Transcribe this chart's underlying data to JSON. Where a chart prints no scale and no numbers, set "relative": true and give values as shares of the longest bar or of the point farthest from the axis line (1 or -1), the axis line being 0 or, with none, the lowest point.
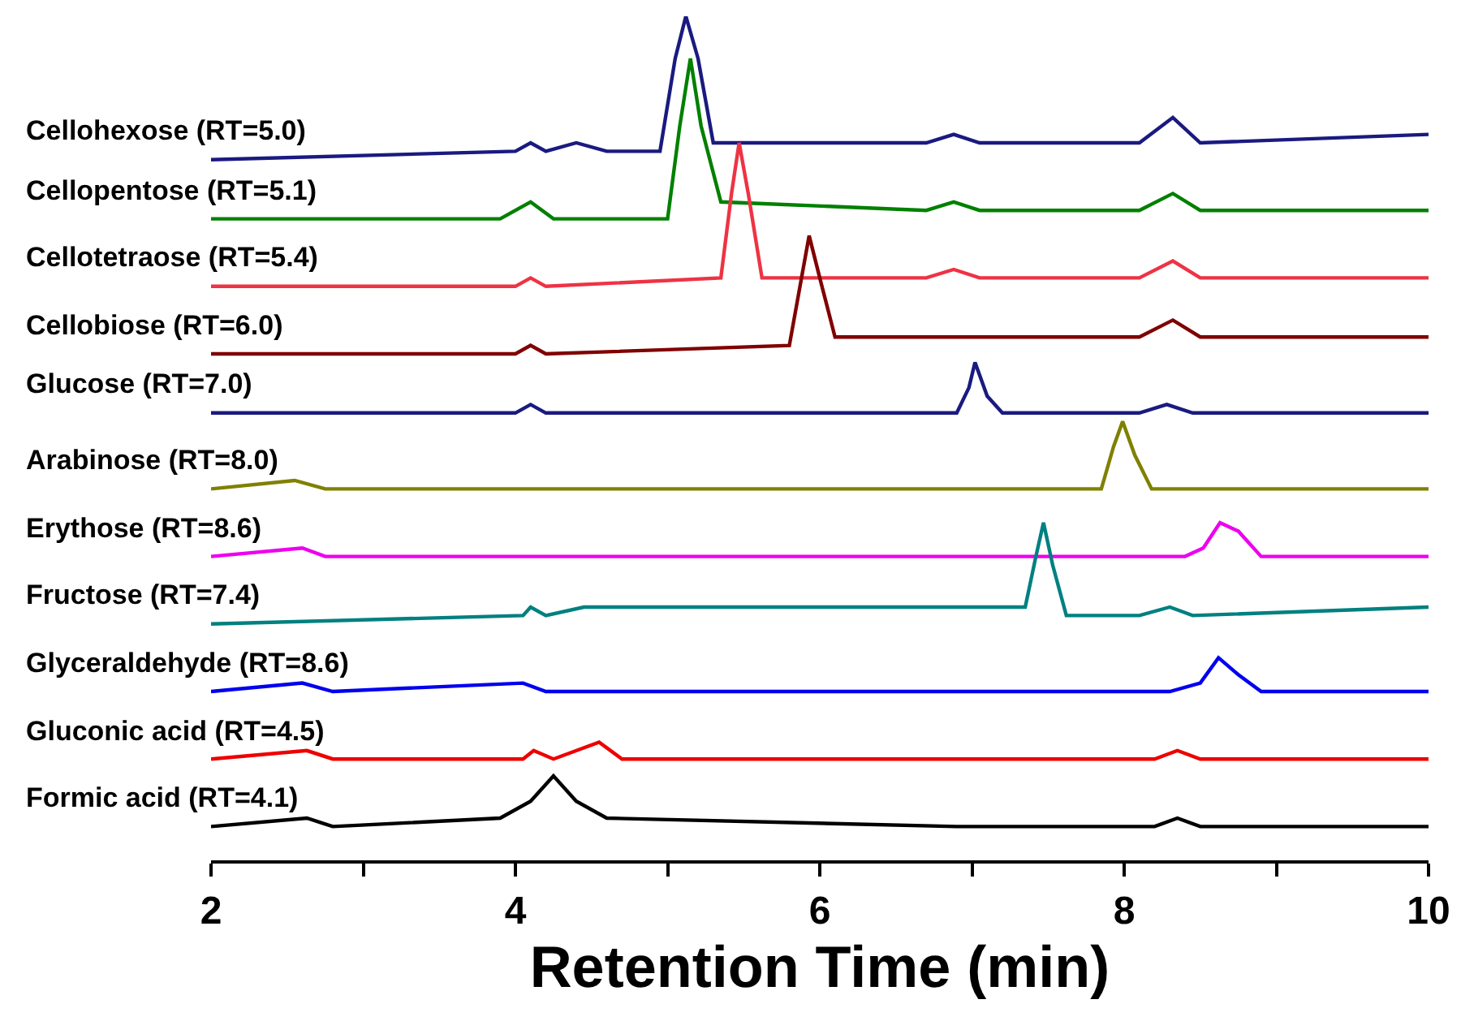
{
  "chart_data": {
    "type": "line",
    "relative": true,
    "xlabel": "Retention Time (min)",
    "xlim": [
      2,
      10
    ],
    "xticks": [
      2,
      {
        "value": 3,
        "label": null
      },
      4,
      {
        "value": 5,
        "label": null
      },
      6,
      {
        "value": 7,
        "label": null
      },
      8,
      {
        "value": 9,
        "label": null
      },
      10
    ],
    "grid": false,
    "legend": false,
    "marker": "none",
    "line_style": "solid",
    "tick_labels": "x",
    "series": [
      {
        "name": "Cellohexose (RT=5.0)",
        "color": "#1a1a80",
        "x": [
          2,
          4,
          4.1,
          4.2,
          4.4,
          4.6,
          4.95,
          5.05,
          5.12,
          5.2,
          5.3,
          5.6,
          6.7,
          6.88,
          7.05,
          8.1,
          8.32,
          8.5,
          10
        ],
        "values": [
          0.83,
          0.84,
          0.85,
          0.84,
          0.85,
          0.84,
          0.84,
          0.95,
          1.0,
          0.95,
          0.85,
          0.85,
          0.85,
          0.86,
          0.85,
          0.85,
          0.88,
          0.85,
          0.86
        ]
      },
      {
        "name": "Cellopentose (RT=5.1)",
        "color": "#008000",
        "x": [
          2,
          3.9,
          4.1,
          4.25,
          5.0,
          5.08,
          5.15,
          5.22,
          5.35,
          6.7,
          6.88,
          7.05,
          8.1,
          8.32,
          8.5,
          10
        ],
        "values": [
          0.76,
          0.76,
          0.78,
          0.76,
          0.76,
          0.87,
          0.95,
          0.87,
          0.78,
          0.77,
          0.78,
          0.77,
          0.77,
          0.79,
          0.77,
          0.77
        ]
      },
      {
        "name": "Cellotetraose (RT=5.4)",
        "color": "#ee3344",
        "x": [
          2,
          4.0,
          4.1,
          4.2,
          5.35,
          5.42,
          5.47,
          5.53,
          5.62,
          5.8,
          6.7,
          6.88,
          7.05,
          8.1,
          8.32,
          8.5,
          10
        ],
        "values": [
          0.68,
          0.68,
          0.69,
          0.68,
          0.69,
          0.79,
          0.85,
          0.79,
          0.69,
          0.69,
          0.69,
          0.7,
          0.69,
          0.69,
          0.71,
          0.69,
          0.69
        ]
      },
      {
        "name": "Cellobiose (RT=6.0)",
        "color": "#800000",
        "x": [
          2,
          4.0,
          4.1,
          4.2,
          5.8,
          5.88,
          5.93,
          6.0,
          6.1,
          6.88,
          8.1,
          8.32,
          8.5,
          10
        ],
        "values": [
          0.6,
          0.6,
          0.61,
          0.6,
          0.61,
          0.69,
          0.74,
          0.69,
          0.62,
          0.62,
          0.62,
          0.64,
          0.62,
          0.62
        ]
      },
      {
        "name": "Glucose (RT=7.0)",
        "color": "#1a1a80",
        "x": [
          2,
          4.0,
          4.1,
          4.2,
          6.9,
          6.98,
          7.02,
          7.1,
          7.2,
          8.1,
          8.28,
          8.45,
          10
        ],
        "values": [
          0.53,
          0.53,
          0.54,
          0.53,
          0.53,
          0.56,
          0.59,
          0.55,
          0.53,
          0.53,
          0.54,
          0.53,
          0.53
        ]
      },
      {
        "name": "Arabinose (RT=8.0)",
        "color": "#808000",
        "x": [
          2,
          2.55,
          2.75,
          7.85,
          7.93,
          7.99,
          8.07,
          8.18,
          10
        ],
        "values": [
          0.44,
          0.45,
          0.44,
          0.44,
          0.49,
          0.52,
          0.48,
          0.44,
          0.44
        ]
      },
      {
        "name": "Erythose (RT=8.6)",
        "color": "#ee00ee",
        "x": [
          2,
          2.6,
          2.75,
          8.4,
          8.52,
          8.63,
          8.75,
          8.9,
          10
        ],
        "values": [
          0.36,
          0.37,
          0.36,
          0.36,
          0.37,
          0.4,
          0.39,
          0.36,
          0.36
        ]
      },
      {
        "name": "Fructose (RT=7.4)",
        "color": "#008080",
        "x": [
          2,
          4.05,
          4.1,
          4.2,
          4.45,
          7.35,
          7.42,
          7.47,
          7.53,
          7.62,
          8.1,
          8.3,
          8.45,
          10
        ],
        "values": [
          0.28,
          0.29,
          0.3,
          0.29,
          0.3,
          0.3,
          0.36,
          0.4,
          0.35,
          0.29,
          0.29,
          0.3,
          0.29,
          0.3
        ]
      },
      {
        "name": "Glyceraldehyde (RT=8.6)",
        "color": "#0000ee",
        "x": [
          2,
          2.6,
          2.8,
          4.05,
          4.2,
          8.3,
          8.5,
          8.62,
          8.75,
          8.9,
          10
        ],
        "values": [
          0.2,
          0.21,
          0.2,
          0.21,
          0.2,
          0.2,
          0.21,
          0.24,
          0.22,
          0.2,
          0.2
        ]
      },
      {
        "name": "Gluconic acid (RT=4.5)",
        "color": "#ee0000",
        "x": [
          2,
          2.63,
          2.8,
          4.05,
          4.12,
          4.25,
          4.55,
          4.7,
          8.2,
          8.35,
          8.5,
          10
        ],
        "values": [
          0.12,
          0.13,
          0.12,
          0.12,
          0.13,
          0.12,
          0.14,
          0.12,
          0.12,
          0.13,
          0.12,
          0.12
        ]
      },
      {
        "name": "Formic acid (RT=4.1)",
        "color": "#000000",
        "x": [
          2,
          2.63,
          2.8,
          3.9,
          4.1,
          4.25,
          4.4,
          4.6,
          6.9,
          8.2,
          8.35,
          8.5,
          10
        ],
        "values": [
          0.04,
          0.05,
          0.04,
          0.05,
          0.07,
          0.1,
          0.07,
          0.05,
          0.04,
          0.04,
          0.05,
          0.04,
          0.04
        ]
      }
    ]
  }
}
